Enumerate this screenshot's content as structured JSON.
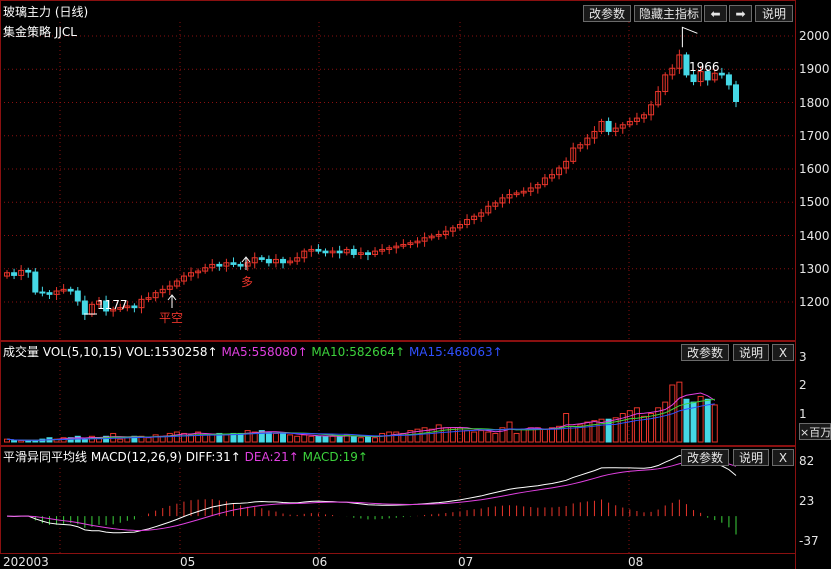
{
  "main": {
    "title": "玻璃主力 (日线)",
    "strategy_label": "集金策略 JJCL",
    "buttons": {
      "params": "改参数",
      "hide": "隐藏主指标",
      "prev": "⬅",
      "next": "➡",
      "help": "说明"
    },
    "annotations": {
      "high": "1966",
      "low": "1177",
      "short_close": "平空",
      "long": "多"
    },
    "yticks": [
      "2000",
      "1900",
      "1800",
      "1700",
      "1600",
      "1500",
      "1400",
      "1300",
      "1200"
    ]
  },
  "volume": {
    "title": "成交量 VOL(5,10,15) VOL:1530258↑",
    "ma5": "MA5:558080↑",
    "ma10": "MA10:582664↑",
    "ma15": "MA15:468063↑",
    "buttons": {
      "params": "改参数",
      "help": "说明",
      "close": "X"
    },
    "yticks": [
      "3",
      "2",
      "1"
    ],
    "unit": "×百万"
  },
  "macd": {
    "title": "平滑异同平均线 MACD(12,26,9) DIFF:31↑",
    "dea": "DEA:21↑",
    "macd": "MACD:19↑",
    "buttons": {
      "params": "改参数",
      "help": "说明",
      "close": "X"
    },
    "yticks": [
      "82",
      "23",
      "-37"
    ]
  },
  "xaxis": [
    "202003",
    "05",
    "06",
    "07",
    "08"
  ],
  "colors": {
    "up": "#e8352b",
    "down": "#45d8e6",
    "grid": "#8a1010",
    "bg": "#000000",
    "ma5": "#e040e0",
    "ma10": "#3cd23c",
    "ma15": "#3050ff",
    "diff": "#ffffff",
    "dea": "#e040e0"
  },
  "chart_data": {
    "type": "candlestick",
    "start_price": 1278,
    "high_marker": 1966,
    "low_marker": 1177,
    "changes": [
      10,
      -8,
      15,
      -5,
      -60,
      -2,
      -5,
      10,
      5,
      -5,
      -30,
      -40,
      30,
      10,
      -30,
      5,
      5,
      5,
      -5,
      25,
      5,
      15,
      10,
      10,
      15,
      15,
      10,
      5,
      10,
      10,
      -5,
      10,
      -5,
      -5,
      10,
      15,
      -5,
      -10,
      10,
      -10,
      5,
      10,
      20,
      5,
      -5,
      -5,
      5,
      -5,
      10,
      -15,
      5,
      -5,
      10,
      5,
      5,
      5,
      5,
      5,
      5,
      10,
      5,
      5,
      10,
      10,
      10,
      15,
      10,
      10,
      20,
      10,
      15,
      10,
      5,
      5,
      10,
      10,
      20,
      10,
      20,
      20,
      40,
      10,
      20,
      20,
      30,
      -30,
      10,
      10,
      10,
      10,
      10,
      30,
      40,
      50,
      20,
      40,
      -60,
      -20,
      30,
      -25,
      20,
      -5,
      -30,
      -50
    ],
    "up_volumes": [
      0.1,
      0.05,
      0.05,
      0.05,
      0.05,
      0.1,
      0.15,
      0.1,
      0.15,
      0.15,
      0.2,
      0.1,
      0.2,
      0.15,
      0.2,
      0.3,
      0.1,
      0.15,
      0.2,
      0.2,
      0.15,
      0.25,
      0.2,
      0.3,
      0.35,
      0.3,
      0.25,
      0.35,
      0.25,
      0.25,
      0.3,
      0.25,
      0.3,
      0.3,
      0.4,
      0.35,
      0.4,
      0.35,
      0.3,
      0.3,
      0.25,
      0.2,
      0.25,
      0.2,
      0.2,
      0.2,
      0.2,
      0.2,
      0.25,
      0.2,
      0.15,
      0.2,
      0.15,
      0.3,
      0.35,
      0.35,
      0.3,
      0.4,
      0.45,
      0.5,
      0.45,
      0.6,
      0.5,
      0.5,
      0.5,
      0.4,
      0.35,
      0.4,
      0.35,
      0.3,
      0.5,
      0.7,
      0.3,
      0.45,
      0.5,
      0.5,
      0.45,
      0.5,
      0.55,
      1.0,
      0.55,
      0.6,
      0.7,
      0.75,
      0.8,
      0.8,
      0.85,
      1.0,
      1.1,
      1.2,
      0.9,
      1.0,
      1.2,
      1.4,
      2.0,
      2.1,
      1.5,
      1.4,
      1.6,
      1.5,
      1.3
    ],
    "down_volumes": [
      0,
      0,
      0,
      0,
      0,
      0,
      0,
      0,
      0,
      0,
      0,
      0,
      0,
      0,
      0,
      0,
      0,
      0,
      0,
      0,
      0,
      0,
      0,
      0,
      0,
      0,
      0,
      0,
      0,
      0,
      0,
      0,
      0,
      0,
      0,
      0,
      0,
      0,
      0,
      0,
      0,
      0,
      0,
      0,
      0,
      0,
      0,
      0,
      0,
      0,
      0,
      0,
      0,
      0,
      0,
      0,
      0,
      0,
      0,
      0,
      0,
      0,
      0,
      0,
      0,
      0,
      0,
      0,
      0,
      0,
      0,
      0,
      0,
      0,
      0,
      0,
      0,
      0,
      0,
      0,
      0,
      0,
      0,
      0,
      0,
      0,
      0,
      0,
      0,
      0,
      0,
      0,
      0,
      0,
      0,
      0,
      0,
      0,
      0,
      0,
      0
    ]
  }
}
